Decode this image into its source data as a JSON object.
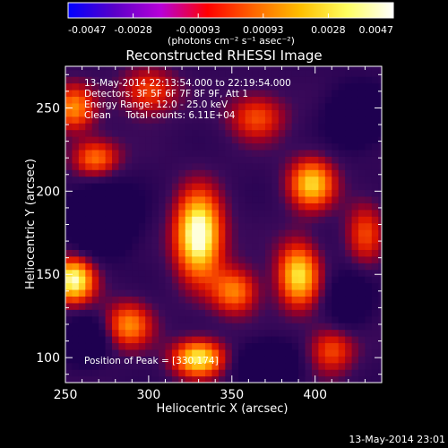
{
  "chart_data": {
    "type": "heatmap",
    "title": "Reconstructed RHESSI Image",
    "xlabel": "Heliocentric X (arcsec)",
    "ylabel": "Heliocentric Y (arcsec)",
    "xlim": [
      250,
      440
    ],
    "ylim": [
      85,
      275
    ],
    "x_ticks": [
      250,
      300,
      350,
      400
    ],
    "y_ticks": [
      100,
      150,
      200,
      250
    ],
    "colorbar": {
      "min": -0.0047,
      "max": 0.0047,
      "tick_labels": [
        "-0.0047",
        "-0.0028",
        "-0.00093",
        "0.00093",
        "0.0028",
        "0.0047"
      ],
      "unit_label": "(photons cm⁻² s⁻¹ asec⁻²)",
      "colors": [
        "#0000ff",
        "#5a00c8",
        "#b800d8",
        "#ff0000",
        "#ff6600",
        "#ffbf00",
        "#ffff60",
        "#ffffff"
      ]
    },
    "info": [
      "13-May-2014 22:13:54.000 to 22:19:54.000",
      "Detectors: 3F 5F 6F 7F 8F 9F, Att 1",
      "Energy Range: 12.0 - 25.0 keV",
      "Clean     Total counts: 6.11E+04"
    ],
    "peak_label": "Position of Peak = [330,174]",
    "peak_position": [
      330,
      174
    ],
    "sources": [
      {
        "x": 330,
        "y": 174,
        "amp": 1.0,
        "sx": 10,
        "sy": 18
      },
      {
        "x": 255,
        "y": 147,
        "amp": 0.85,
        "sx": 9,
        "sy": 10
      },
      {
        "x": 330,
        "y": 100,
        "amp": 0.8,
        "sx": 11,
        "sy": 8
      },
      {
        "x": 398,
        "y": 205,
        "amp": 0.7,
        "sx": 10,
        "sy": 11
      },
      {
        "x": 390,
        "y": 150,
        "amp": 0.75,
        "sx": 9,
        "sy": 14
      },
      {
        "x": 268,
        "y": 220,
        "amp": 0.55,
        "sx": 10,
        "sy": 8
      },
      {
        "x": 255,
        "y": 250,
        "amp": 0.55,
        "sx": 9,
        "sy": 10
      },
      {
        "x": 352,
        "y": 140,
        "amp": 0.55,
        "sx": 10,
        "sy": 10
      },
      {
        "x": 288,
        "y": 120,
        "amp": 0.55,
        "sx": 10,
        "sy": 10
      },
      {
        "x": 410,
        "y": 105,
        "amp": 0.45,
        "sx": 10,
        "sy": 10
      },
      {
        "x": 300,
        "y": 260,
        "amp": 0.45,
        "sx": 12,
        "sy": 10
      },
      {
        "x": 365,
        "y": 245,
        "amp": 0.45,
        "sx": 12,
        "sy": 10
      },
      {
        "x": 430,
        "y": 175,
        "amp": 0.4,
        "sx": 8,
        "sy": 14
      }
    ],
    "negative_regions": [
      {
        "x": 272,
        "y": 184,
        "amp": 0.55,
        "sx": 14,
        "sy": 14
      },
      {
        "x": 372,
        "y": 95,
        "amp": 0.5,
        "sx": 12,
        "sy": 10
      },
      {
        "x": 262,
        "y": 110,
        "amp": 0.4,
        "sx": 9,
        "sy": 10
      },
      {
        "x": 425,
        "y": 245,
        "amp": 0.45,
        "sx": 12,
        "sy": 12
      },
      {
        "x": 420,
        "y": 135,
        "amp": 0.35,
        "sx": 9,
        "sy": 12
      }
    ]
  },
  "footer_timestamp": "13-May-2014 23:01"
}
